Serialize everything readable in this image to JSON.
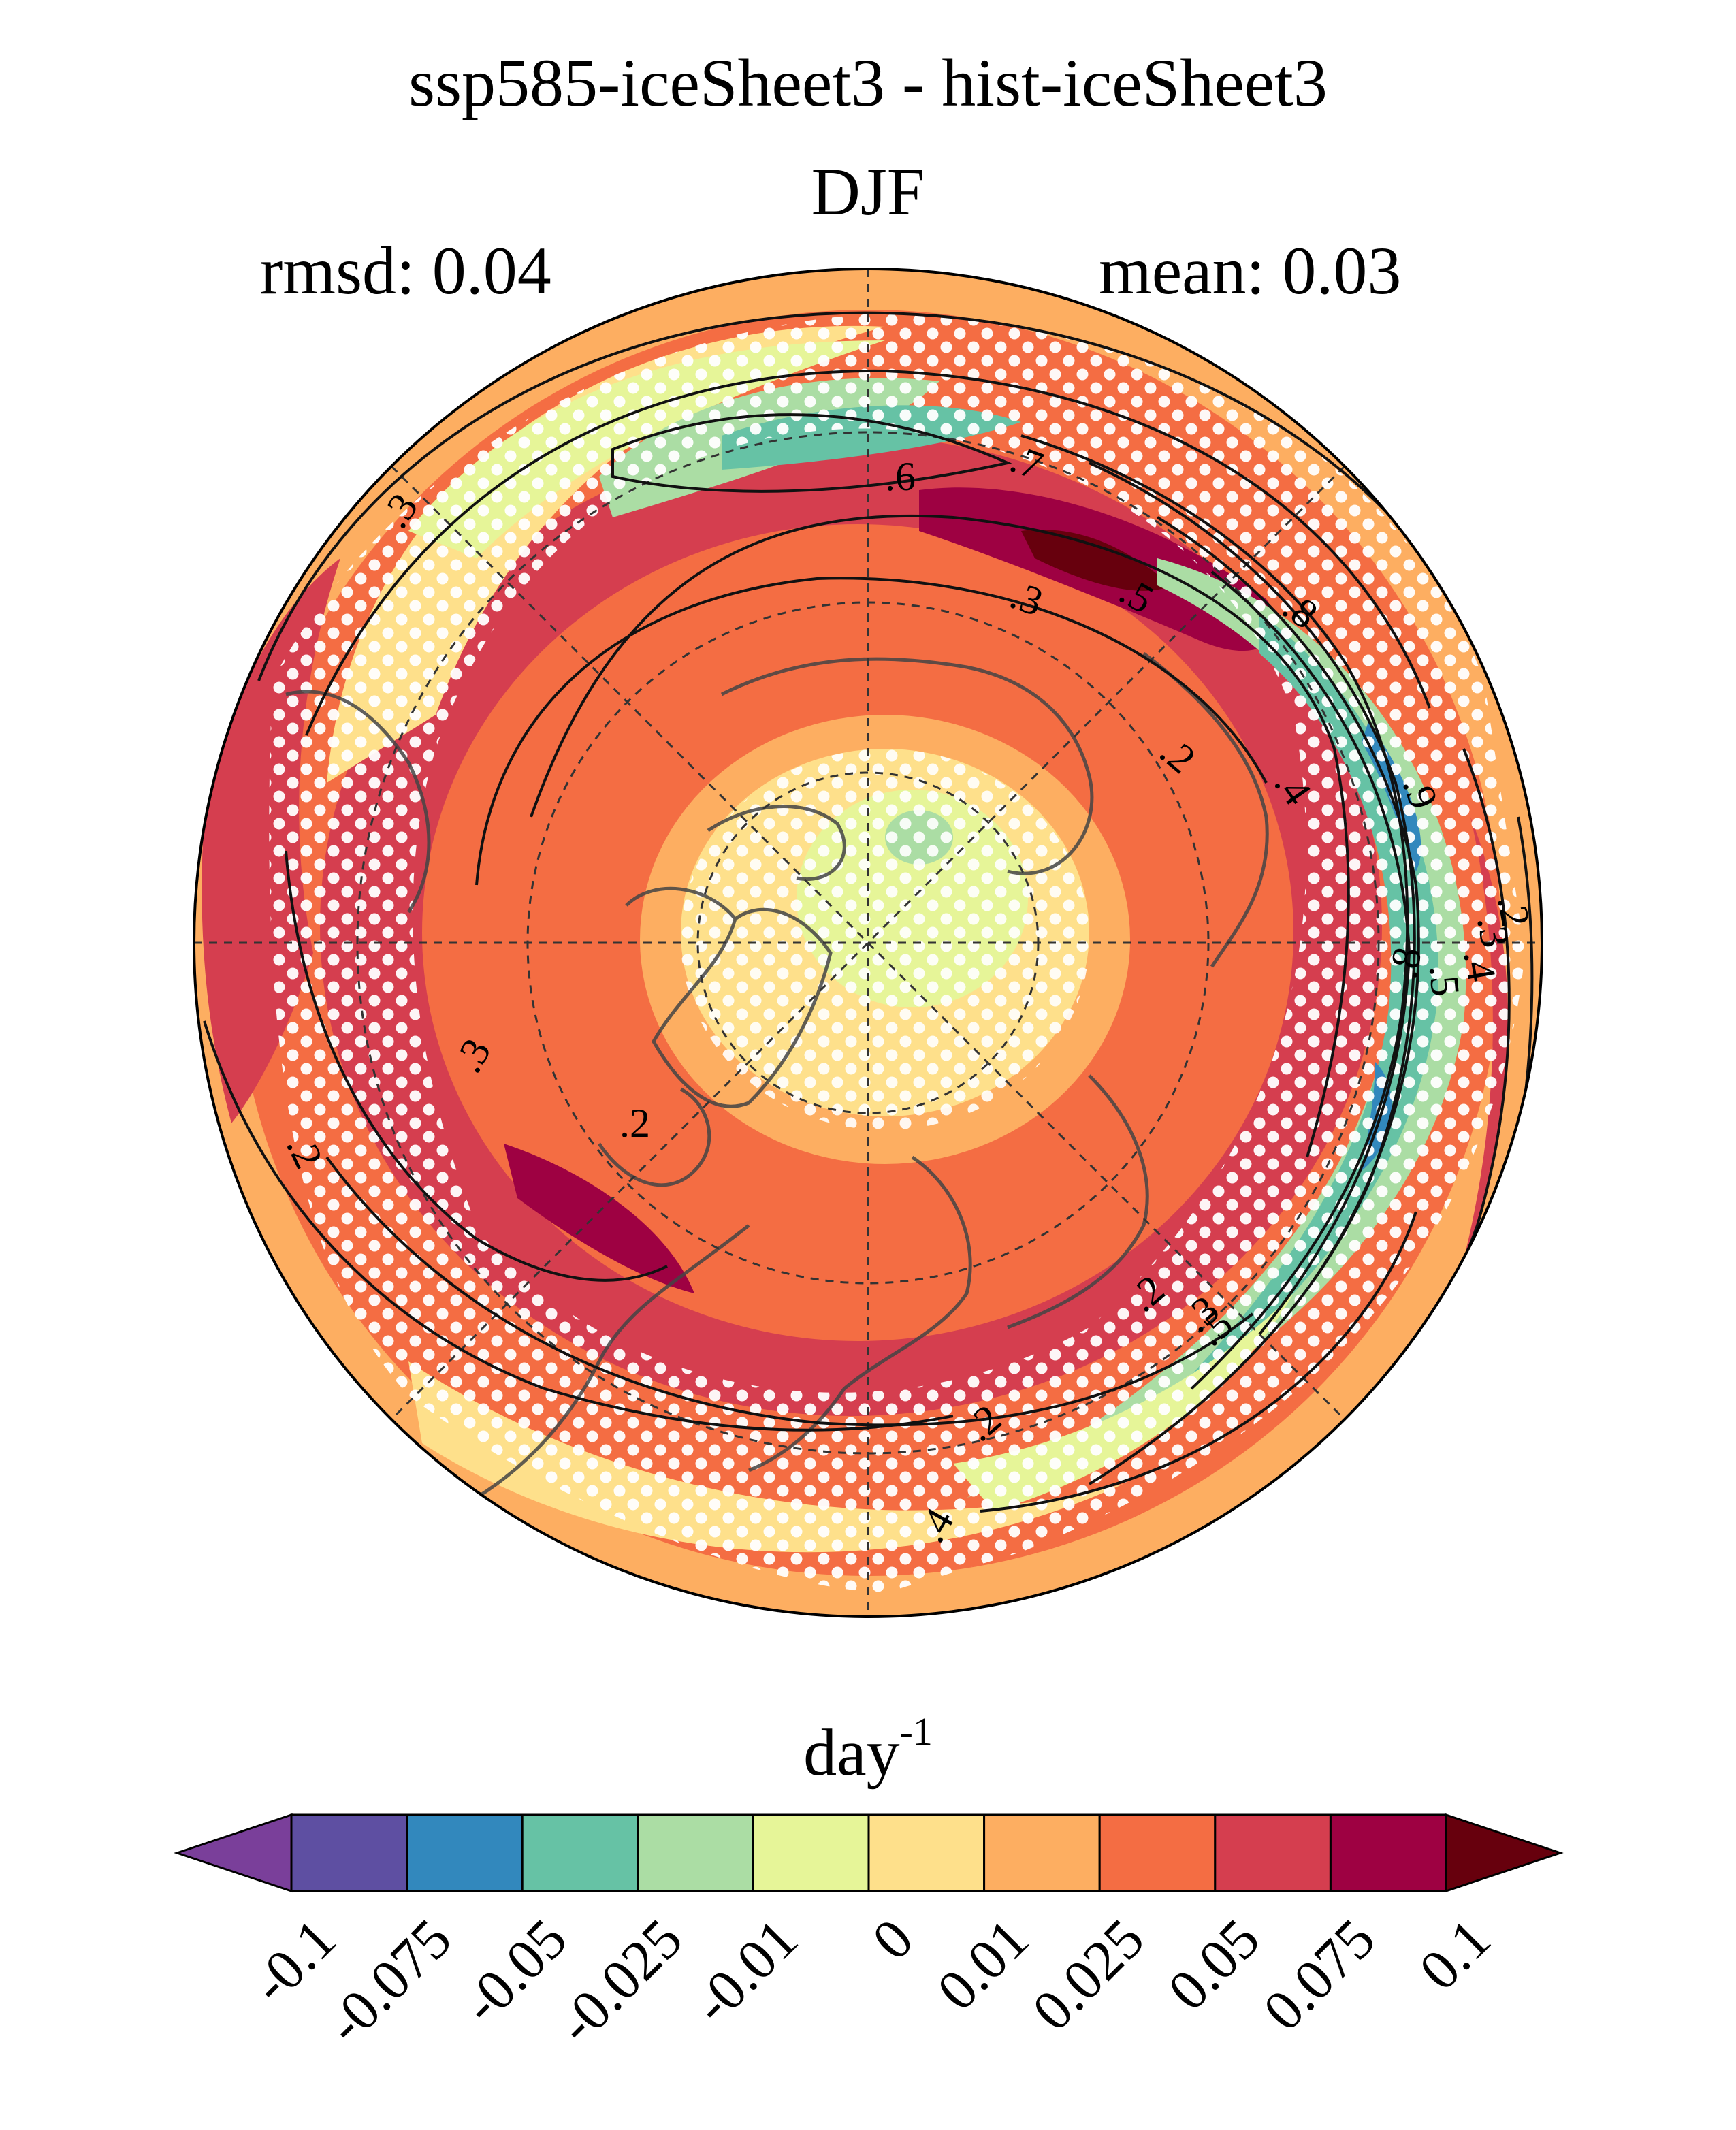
{
  "title": {
    "line1": "ssp585-iceSheet3 - hist-iceSheet3",
    "line2": "DJF"
  },
  "stats": {
    "rmsd": "rmsd: 0.04",
    "mean": "mean: 0.03"
  },
  "colorbar": {
    "units_base": "day",
    "units_exp": "-1",
    "ticks": [
      "-0.1",
      "-0.075",
      "-0.05",
      "-0.025",
      "-0.01",
      "0",
      "0.01",
      "0.025",
      "0.05",
      "0.075",
      "0.1"
    ],
    "colors": [
      "#5e4fa2",
      "#3288bd",
      "#66c2a5",
      "#abdda4",
      "#e6f598",
      "#fee08b",
      "#fdae61",
      "#f46d43",
      "#d53e4f",
      "#9e0142"
    ],
    "under_color": "#7a3f9a",
    "over_color": "#67000d"
  },
  "map": {
    "projection": "north polar stereographic",
    "contour_labels": [
      ".2",
      ".3",
      ".3",
      ".6",
      ".7",
      ".3",
      ".5",
      ".2",
      ".8",
      ".4",
      ".9",
      ".2",
      ".3",
      ".4",
      ".5",
      ".8",
      ".2",
      ".3",
      ".2",
      ".3",
      ".5",
      ".2",
      ".4"
    ]
  }
}
